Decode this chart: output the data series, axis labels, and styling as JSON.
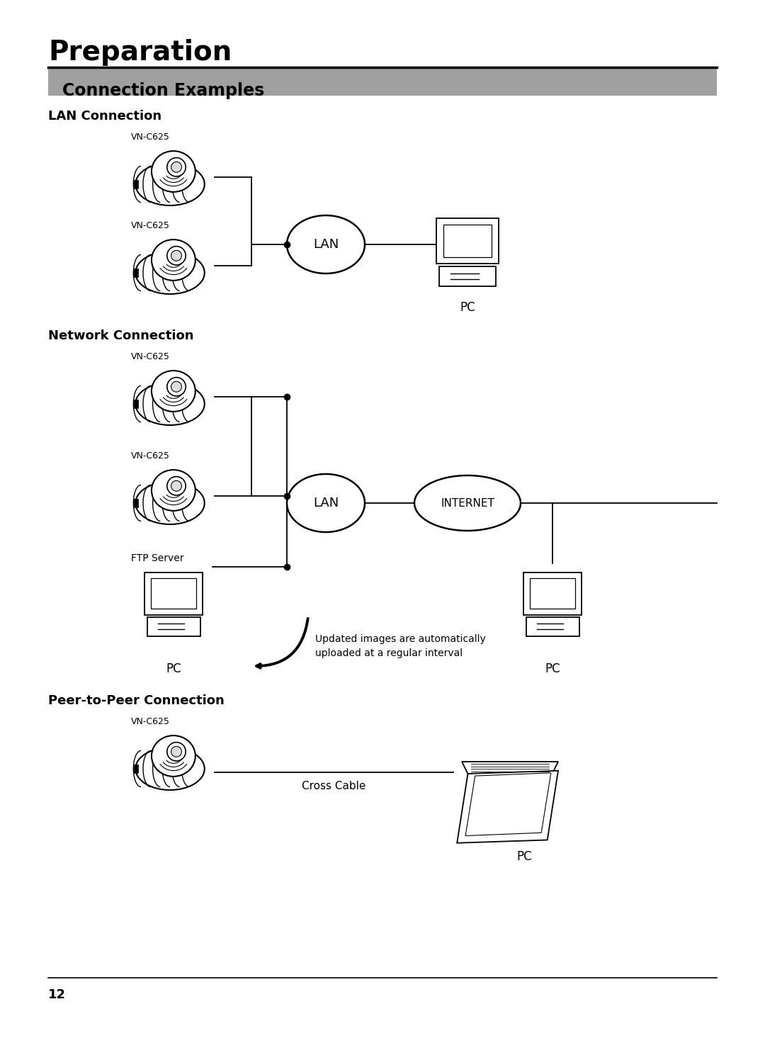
{
  "title": "Preparation",
  "section_header": "Connection Examples",
  "section_header_bg": "#a0a0a0",
  "bg_color": "#ffffff",
  "subsection1": "LAN Connection",
  "subsection2": "Network Connection",
  "subsection3": "Peer-to-Peer Connection",
  "label_vnc625": "VN-C625",
  "label_lan": "LAN",
  "label_internet": "INTERNET",
  "label_pc": "PC",
  "label_ftp": "FTP Server",
  "label_cross_cable": "Cross Cable",
  "label_updated1": "Updated images are automatically",
  "label_updated2": "uploaded at a regular interval",
  "page_number": "12",
  "line_color": "#000000",
  "text_color": "#000000"
}
